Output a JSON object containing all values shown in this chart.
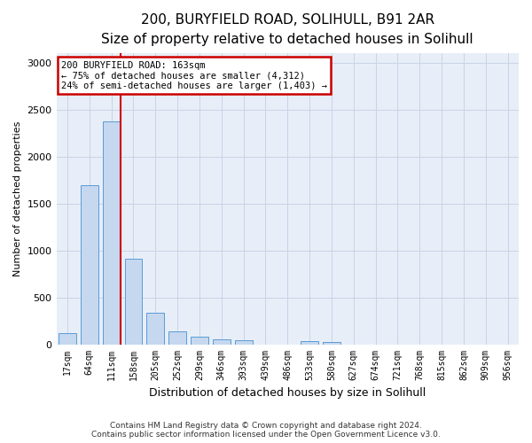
{
  "title1": "200, BURYFIELD ROAD, SOLIHULL, B91 2AR",
  "title2": "Size of property relative to detached houses in Solihull",
  "xlabel": "Distribution of detached houses by size in Solihull",
  "ylabel": "Number of detached properties",
  "categories": [
    "17sqm",
    "64sqm",
    "111sqm",
    "158sqm",
    "205sqm",
    "252sqm",
    "299sqm",
    "346sqm",
    "393sqm",
    "439sqm",
    "486sqm",
    "533sqm",
    "580sqm",
    "627sqm",
    "674sqm",
    "721sqm",
    "768sqm",
    "815sqm",
    "862sqm",
    "909sqm",
    "956sqm"
  ],
  "values": [
    120,
    1700,
    2380,
    910,
    340,
    140,
    80,
    55,
    40,
    0,
    0,
    30,
    20,
    0,
    0,
    0,
    0,
    0,
    0,
    0,
    0
  ],
  "bar_color": "#c5d8ef",
  "bar_edge_color": "#5b9bd5",
  "annotation_text": "200 BURYFIELD ROAD: 163sqm\n← 75% of detached houses are smaller (4,312)\n24% of semi-detached houses are larger (1,403) →",
  "annotation_box_color": "white",
  "annotation_border_color": "#cc0000",
  "vline_color": "#cc0000",
  "vline_x_index": 2,
  "ylim": [
    0,
    3100
  ],
  "yticks": [
    0,
    500,
    1000,
    1500,
    2000,
    2500,
    3000
  ],
  "grid_color": "#c8d4e8",
  "bg_color": "#e8eef8",
  "footer": "Contains HM Land Registry data © Crown copyright and database right 2024.\nContains public sector information licensed under the Open Government Licence v3.0.",
  "title1_fontsize": 11,
  "title2_fontsize": 9.5,
  "ylabel_fontsize": 8,
  "xlabel_fontsize": 9
}
